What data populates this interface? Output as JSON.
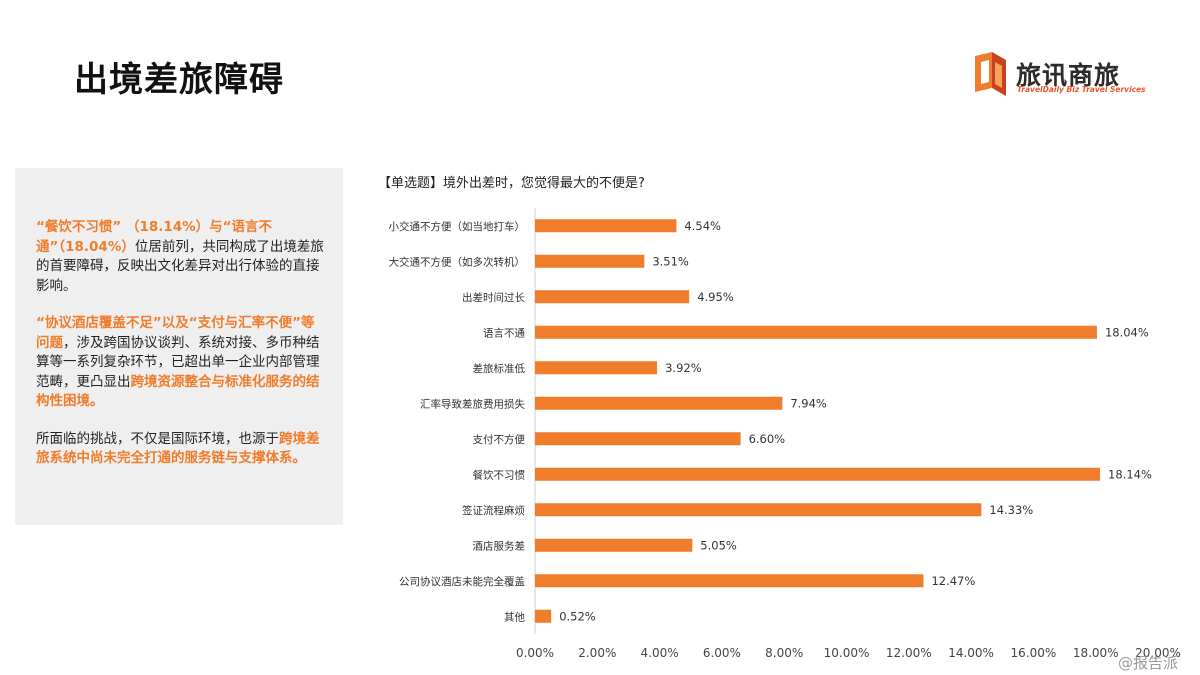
{
  "page": {
    "title": "出境差旅障碍"
  },
  "logo": {
    "name": "旅讯商旅",
    "subtitle": "TravelDaily Biz Travel Services"
  },
  "side_panel": {
    "para1": {
      "h1": "“餐饮不习惯” （18.14%）与“语言不通”（18.04%）",
      "t1": "位居前列，共同构成了出境差旅的首要障碍，反映出文化差异对出行体验的直接影响。"
    },
    "para2": {
      "h1": "“协议酒店覆盖不足”以及“支付与汇率不便”等问题",
      "t1": "，涉及跨国协议谈判、系统对接、多币种结算等一系列复杂环节，已超出单一企业内部管理范畴，更凸显出",
      "h2": "跨境资源整合与标准化服务的结构性困境。"
    },
    "para3": {
      "t1": "所面临的挑战，不仅是国际环境，也源于",
      "h1": "跨境差旅系统中尚未完全打通的服务链与支撑体系。"
    }
  },
  "chart_data": {
    "type": "bar",
    "orientation": "horizontal",
    "title": "【单选题】境外出差时，您觉得最大的不便是?",
    "categories": [
      "小交通不方便（如当地打车）",
      "大交通不方便（如多次转机）",
      "出差时间过长",
      "语言不通",
      "差旅标准低",
      "汇率导致差旅费用损失",
      "支付不方便",
      "餐饮不习惯",
      "签证流程麻烦",
      "酒店服务差",
      "公司协议酒店未能完全覆盖",
      "其他"
    ],
    "values": [
      4.54,
      3.51,
      4.95,
      18.04,
      3.92,
      7.94,
      6.6,
      18.14,
      14.33,
      5.05,
      12.47,
      0.52
    ],
    "value_labels": [
      "4.54%",
      "3.51%",
      "4.95%",
      "18.04%",
      "3.92%",
      "7.94%",
      "6.60%",
      "18.14%",
      "14.33%",
      "5.05%",
      "12.47%",
      "0.52%"
    ],
    "xlim": [
      0,
      20
    ],
    "x_ticks": [
      "0.00%",
      "2.00%",
      "4.00%",
      "6.00%",
      "8.00%",
      "10.00%",
      "12.00%",
      "14.00%",
      "16.00%",
      "18.00%",
      "20.00%"
    ],
    "bar_color": "#ef7d2c",
    "grid": false
  },
  "watermark": "@报告派"
}
